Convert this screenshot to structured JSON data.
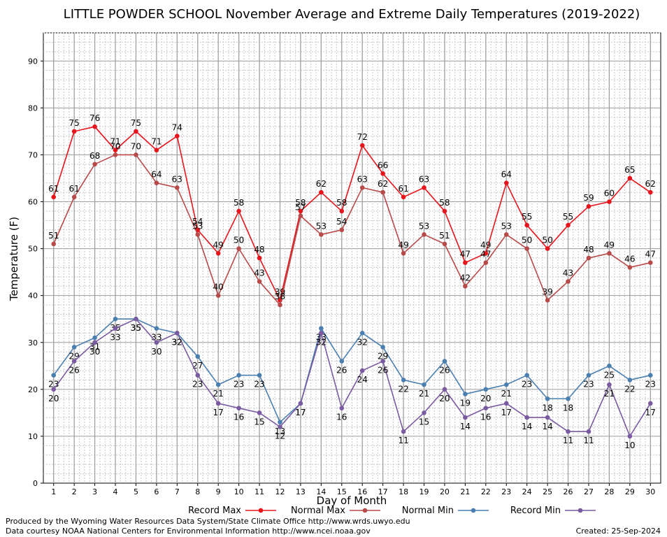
{
  "chart_data": {
    "type": "line",
    "title": "LITTLE POWDER SCHOOL November Average and Extreme Daily Temperatures (2019-2022)",
    "xlabel": "Day of Month",
    "ylabel": "Temperature (F)",
    "x": [
      1,
      2,
      3,
      4,
      5,
      6,
      7,
      8,
      9,
      10,
      11,
      12,
      13,
      14,
      15,
      16,
      17,
      18,
      19,
      20,
      21,
      22,
      23,
      24,
      25,
      26,
      27,
      28,
      29,
      30
    ],
    "xlim": [
      0.5,
      30.5
    ],
    "ylim": [
      0,
      96
    ],
    "y_ticks": [
      0,
      10,
      20,
      30,
      40,
      50,
      60,
      70,
      80,
      90
    ],
    "grid": true,
    "legend_position": "bottom",
    "series": [
      {
        "name": "Record Max",
        "color": "#e8141c",
        "label_position": "above",
        "values": [
          61,
          75,
          76,
          71,
          75,
          71,
          74,
          54,
          49,
          58,
          48,
          39,
          58,
          62,
          58,
          72,
          66,
          61,
          63,
          58,
          47,
          49,
          64,
          55,
          50,
          55,
          59,
          60,
          65,
          62
        ]
      },
      {
        "name": "Normal Max",
        "color": "#b84a4a",
        "label_position": "above",
        "values": [
          51,
          61,
          68,
          70,
          70,
          64,
          63,
          53,
          40,
          50,
          43,
          38,
          57,
          53,
          54,
          63,
          62,
          49,
          53,
          51,
          42,
          47,
          53,
          50,
          39,
          43,
          48,
          49,
          46,
          47
        ]
      },
      {
        "name": "Normal Min",
        "color": "#4a7fb0",
        "label_position": "below",
        "values": [
          23,
          29,
          31,
          35,
          35,
          33,
          32,
          27,
          21,
          23,
          23,
          13,
          17,
          33,
          26,
          32,
          29,
          22,
          21,
          26,
          19,
          20,
          21,
          23,
          18,
          18,
          23,
          25,
          22,
          23
        ]
      },
      {
        "name": "Record Min",
        "color": "#7a5aa0",
        "label_position": "below",
        "values": [
          20,
          26,
          30,
          33,
          35,
          30,
          32,
          23,
          17,
          16,
          15,
          12,
          17,
          32,
          16,
          24,
          26,
          11,
          15,
          20,
          14,
          16,
          17,
          14,
          14,
          11,
          11,
          21,
          10,
          17
        ]
      }
    ]
  },
  "footer": {
    "produced_by": "Produced by the Wyoming Water Resources Data System/State Climate Office http://www.wrds.uwyo.edu",
    "courtesy": "Data courtesy NOAA National Centers for Environmental Information http://www.ncei.noaa.gov",
    "created": "Created:  25-Sep-2024"
  }
}
